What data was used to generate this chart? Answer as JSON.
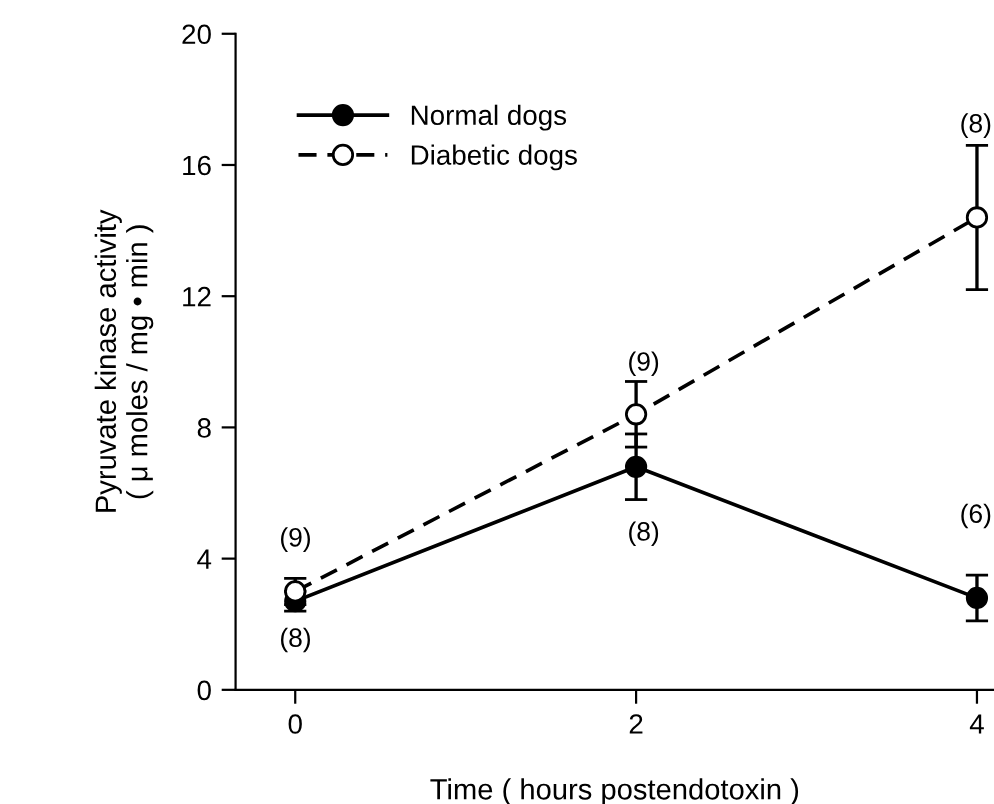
{
  "chart_data": {
    "type": "line",
    "xlabel": "Time ( hours postendotoxin )",
    "ylabel": "Pyruvate kinase activity\n( μ moles / mg • min )",
    "x": [
      0,
      2,
      4
    ],
    "series": [
      {
        "name": "Normal dogs",
        "color": "#000000",
        "values": [
          2.7,
          6.8,
          2.8
        ],
        "errors": [
          0.3,
          1.0,
          0.7
        ],
        "marker": "circle",
        "line_style": "solid"
      },
      {
        "name": "Diabetic dogs",
        "color": "#000000",
        "values": [
          3.0,
          8.4,
          14.4
        ],
        "errors": [
          0.4,
          1.0,
          2.2
        ],
        "marker": "circle",
        "line_style": "dashed"
      }
    ],
    "annotations": [
      "(9)",
      "(8)",
      "(9)",
      "(8)",
      "(8)",
      "(6)"
    ],
    "xlim": [
      -0.35,
      4.1
    ],
    "xticks": [
      0,
      2,
      4
    ],
    "ylim": [
      0,
      20
    ],
    "yticks": [
      0,
      4,
      8,
      12,
      16,
      20
    ],
    "grid": false,
    "legend": "top left"
  }
}
